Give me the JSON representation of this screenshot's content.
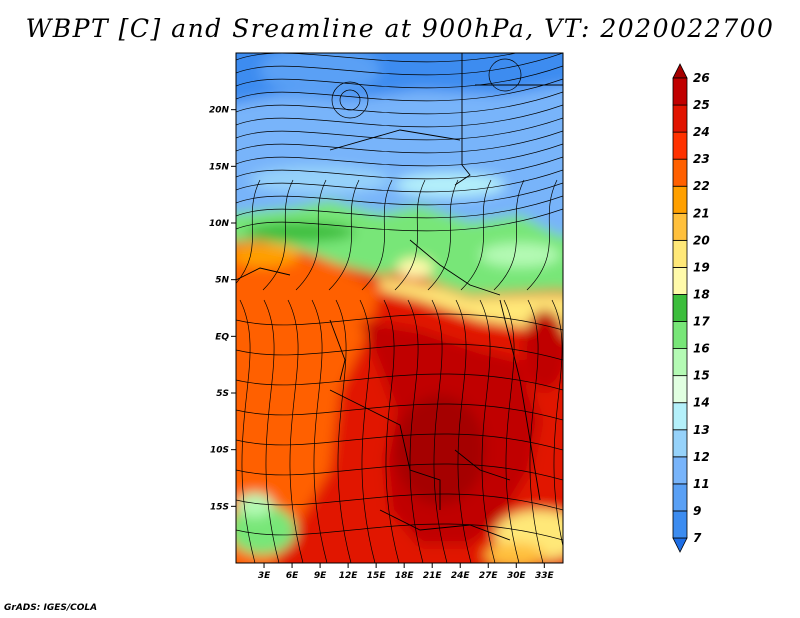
{
  "title": "WBPT [C] and Sreamline at 900hPa, VT: 2020022700",
  "footer": "GrADS: IGES/COLA",
  "map": {
    "lat_range": [
      -20,
      25
    ],
    "lon_range": [
      0,
      35
    ],
    "lat_ticks": [
      {
        "value": 20,
        "label": "20N"
      },
      {
        "value": 15,
        "label": "15N"
      },
      {
        "value": 10,
        "label": "10N"
      },
      {
        "value": 5,
        "label": "5N"
      },
      {
        "value": 0,
        "label": "EQ"
      },
      {
        "value": -5,
        "label": "5S"
      },
      {
        "value": -10,
        "label": "10S"
      },
      {
        "value": -15,
        "label": "15S"
      }
    ],
    "lon_ticks": [
      {
        "value": 3,
        "label": "3E"
      },
      {
        "value": 6,
        "label": "6E"
      },
      {
        "value": 9,
        "label": "9E"
      },
      {
        "value": 12,
        "label": "12E"
      },
      {
        "value": 15,
        "label": "15E"
      },
      {
        "value": 18,
        "label": "18E"
      },
      {
        "value": 21,
        "label": "21E"
      },
      {
        "value": 24,
        "label": "24E"
      },
      {
        "value": 27,
        "label": "27E"
      },
      {
        "value": 30,
        "label": "30E"
      },
      {
        "value": 33,
        "label": "33E"
      }
    ]
  },
  "colorbar": {
    "unit": "C",
    "levels": [
      "7",
      "9",
      "11",
      "12",
      "13",
      "14",
      "15",
      "16",
      "17",
      "18",
      "19",
      "20",
      "21",
      "22",
      "23",
      "24",
      "25",
      "26"
    ],
    "colors": [
      "#1e6ee6",
      "#3c8cf0",
      "#5aa0f5",
      "#78b4fa",
      "#96d2fa",
      "#b4f0fa",
      "#e1ffe1",
      "#b4fab4",
      "#78e678",
      "#3cbe3c",
      "#fffaaa",
      "#ffe878",
      "#ffc03c",
      "#ffa000",
      "#ff6000",
      "#ff3200",
      "#e11400",
      "#c00000",
      "#a50000"
    ]
  }
}
